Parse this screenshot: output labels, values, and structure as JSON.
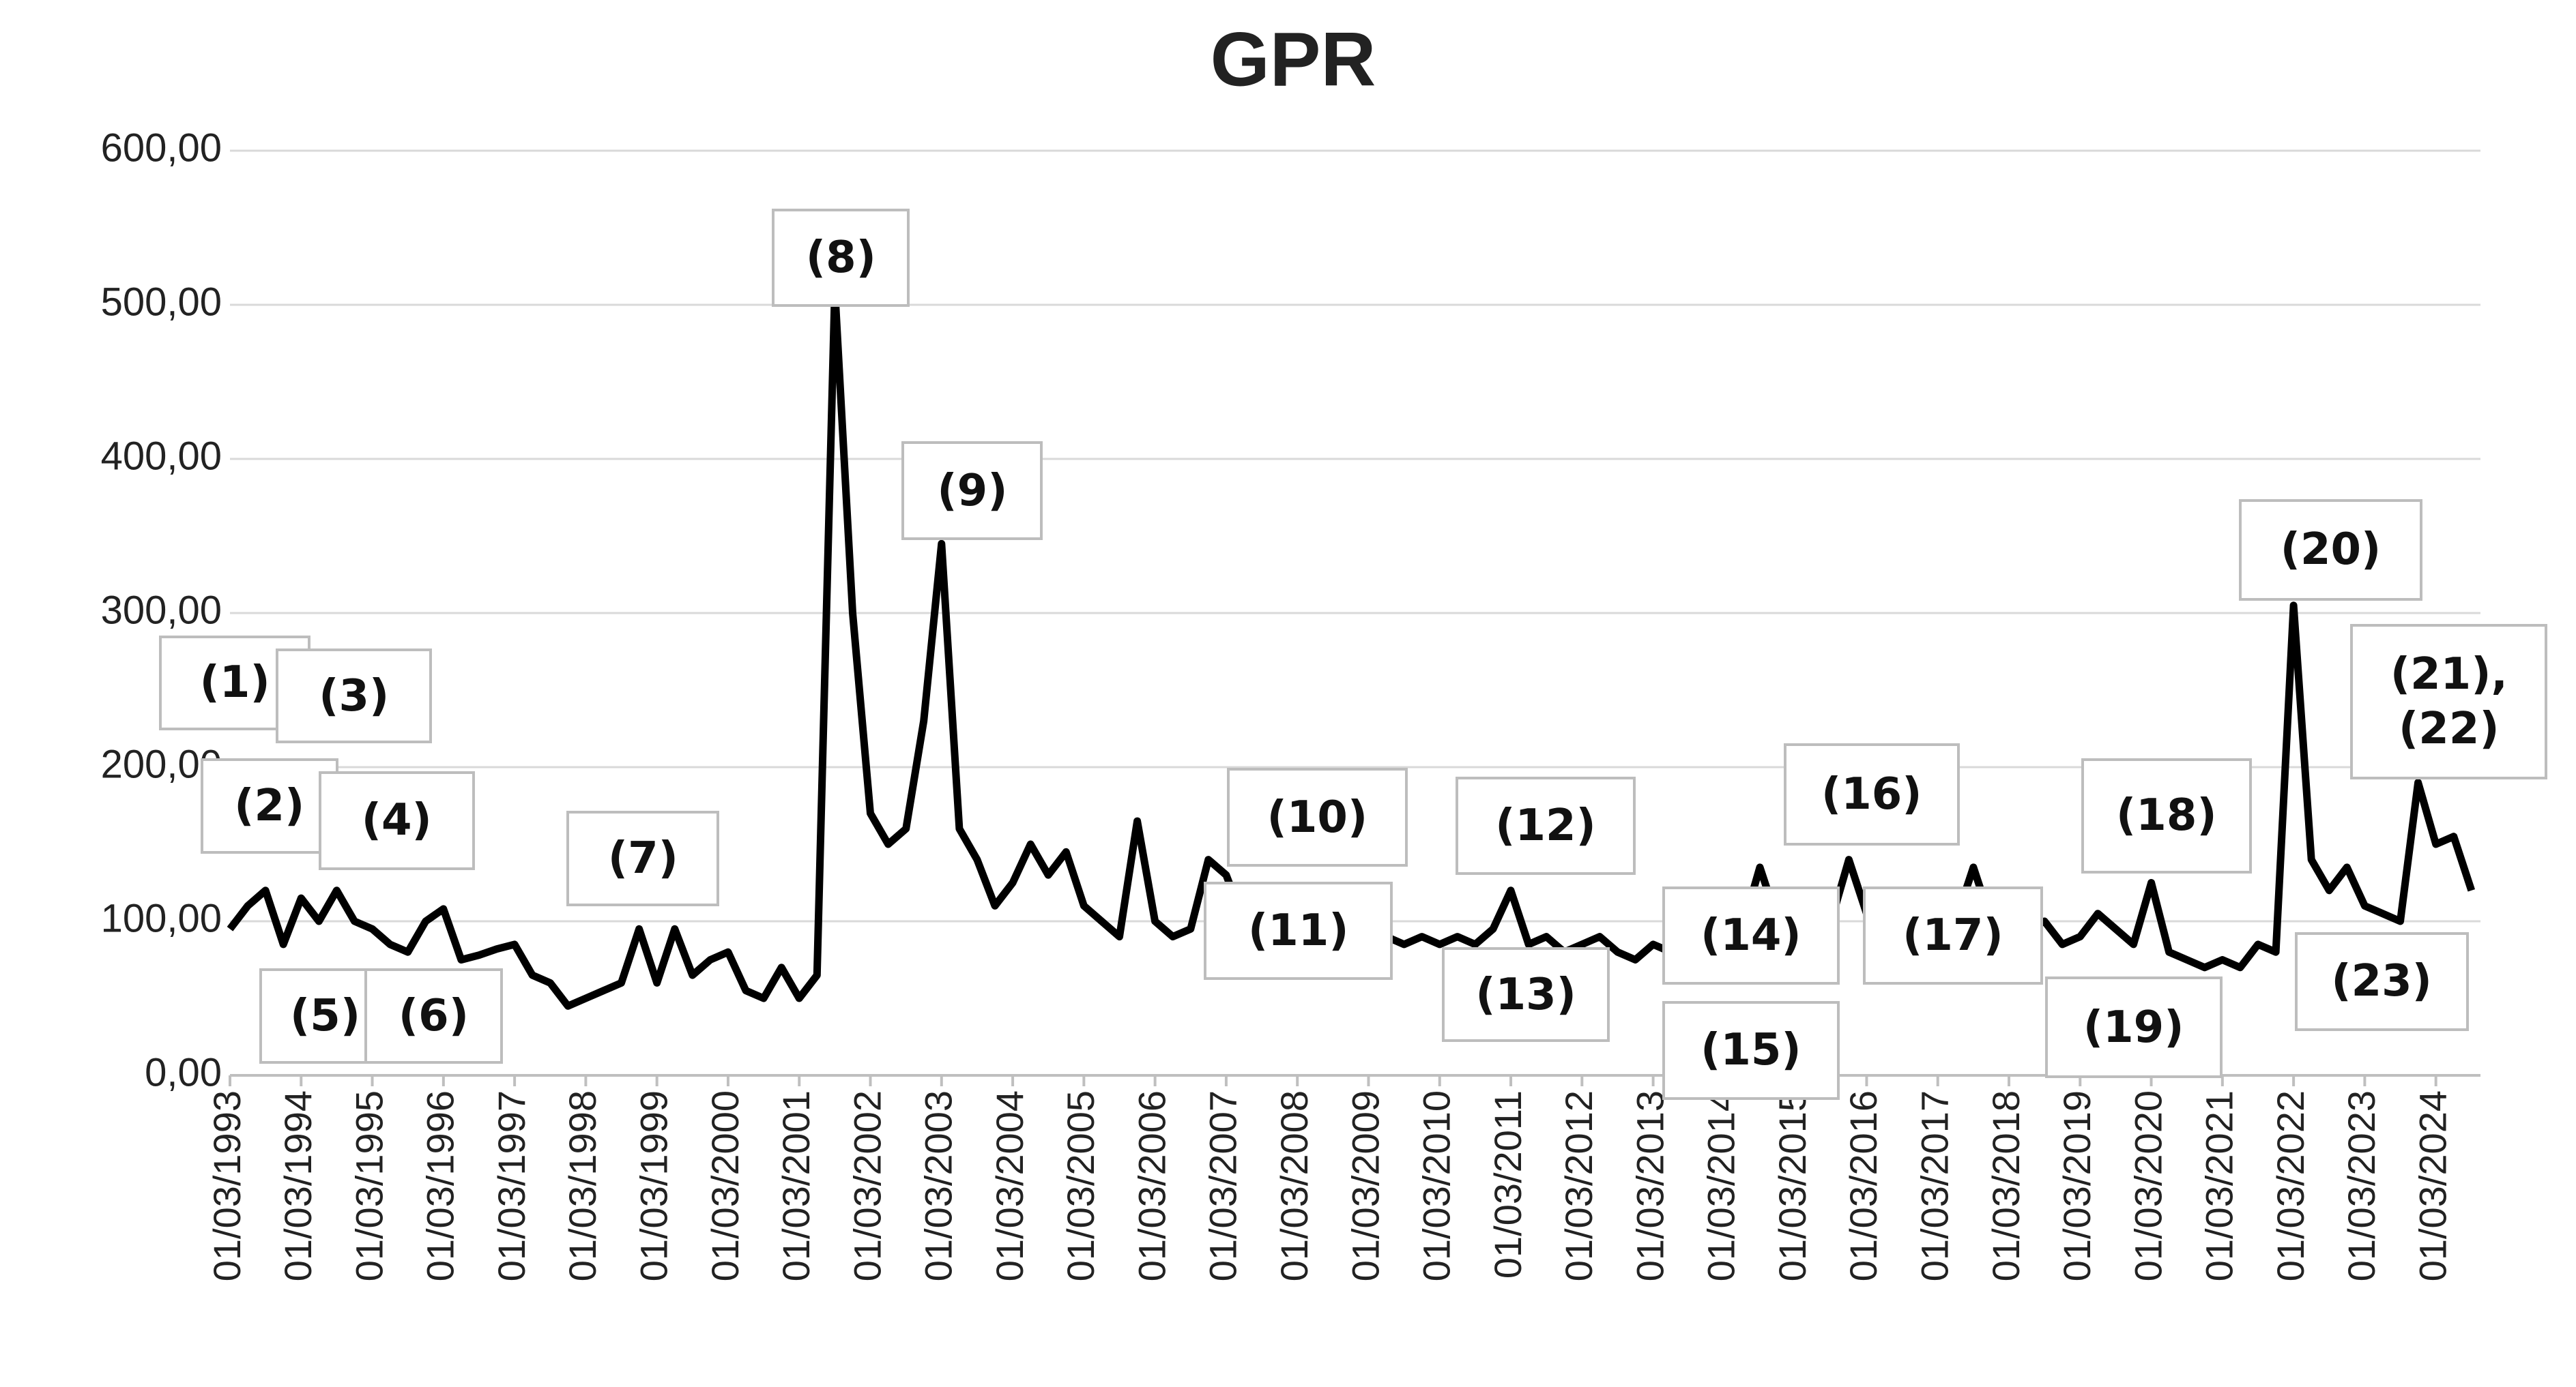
{
  "chart_data": {
    "type": "line",
    "title": "GPR",
    "categories": [
      "01/03/1993",
      null,
      null,
      null,
      "01/03/1994",
      null,
      null,
      null,
      "01/03/1995",
      null,
      null,
      null,
      "01/03/1996",
      null,
      null,
      null,
      "01/03/1997",
      null,
      null,
      null,
      "01/03/1998",
      null,
      null,
      null,
      "01/03/1999",
      null,
      null,
      null,
      "01/03/2000",
      null,
      null,
      null,
      "01/03/2001",
      null,
      null,
      null,
      "01/03/2002",
      null,
      null,
      null,
      "01/03/2003",
      null,
      null,
      null,
      "01/03/2004",
      null,
      null,
      null,
      "01/03/2005",
      null,
      null,
      null,
      "01/03/2006",
      null,
      null,
      null,
      "01/03/2007",
      null,
      null,
      null,
      "01/03/2008",
      null,
      null,
      null,
      "01/03/2009",
      null,
      null,
      null,
      "01/03/2010",
      null,
      null,
      null,
      "01/03/2011",
      null,
      null,
      null,
      "01/03/2012",
      null,
      null,
      null,
      "01/03/2013",
      null,
      null,
      null,
      "01/03/2014",
      null,
      null,
      null,
      "01/03/2015",
      null,
      null,
      null,
      "01/03/2016",
      null,
      null,
      null,
      "01/03/2017",
      null,
      null,
      null,
      "01/03/2018",
      null,
      null,
      null,
      "01/03/2019",
      null,
      null,
      null,
      "01/03/2020",
      null,
      null,
      null,
      "01/03/2021",
      null,
      null,
      null,
      "01/03/2022",
      null,
      null,
      null,
      "01/03/2023",
      null,
      null,
      null,
      "01/03/2024",
      null,
      null
    ],
    "series": [
      {
        "name": "GPR",
        "color": "#000000",
        "values": [
          95,
          110,
          120,
          85,
          115,
          100,
          120,
          100,
          95,
          85,
          80,
          100,
          108,
          75,
          78,
          82,
          85,
          65,
          60,
          45,
          50,
          55,
          60,
          95,
          60,
          95,
          65,
          75,
          80,
          55,
          50,
          70,
          50,
          65,
          510,
          300,
          170,
          150,
          160,
          230,
          345,
          160,
          140,
          110,
          125,
          150,
          130,
          145,
          110,
          100,
          90,
          165,
          100,
          90,
          95,
          140,
          130,
          100,
          95,
          90,
          95,
          90,
          90,
          85,
          85,
          90,
          85,
          90,
          85,
          90,
          85,
          95,
          120,
          85,
          90,
          80,
          85,
          90,
          80,
          75,
          85,
          80,
          90,
          85,
          100,
          95,
          135,
          100,
          95,
          90,
          100,
          140,
          105,
          95,
          90,
          95,
          110,
          100,
          135,
          100,
          105,
          95,
          100,
          85,
          90,
          105,
          95,
          85,
          125,
          80,
          75,
          70,
          75,
          70,
          85,
          80,
          305,
          140,
          120,
          135,
          110,
          105,
          100,
          190,
          150,
          155,
          120
        ]
      }
    ],
    "ylim": [
      0,
      600
    ],
    "yticks": [
      {
        "value": 0,
        "label": "0,00"
      },
      {
        "value": 100,
        "label": "100,00"
      },
      {
        "value": 200,
        "label": "200,00"
      },
      {
        "value": 300,
        "label": "300,00"
      },
      {
        "value": 400,
        "label": "400,00"
      },
      {
        "value": 500,
        "label": "500,00"
      },
      {
        "value": 600,
        "label": "600,00"
      }
    ],
    "grid": true,
    "annotations": [
      "(1)",
      "(2)",
      "(3)",
      "(4)",
      "(5)",
      "(6)",
      "(7)",
      "(8)",
      "(9)",
      "(10)",
      "(11)",
      "(12)",
      "(13)",
      "(14)",
      "(15)",
      "(16)",
      "(17)",
      "(18)",
      "(19)",
      "(20)",
      "(21),\n(22)",
      "(23)"
    ]
  }
}
